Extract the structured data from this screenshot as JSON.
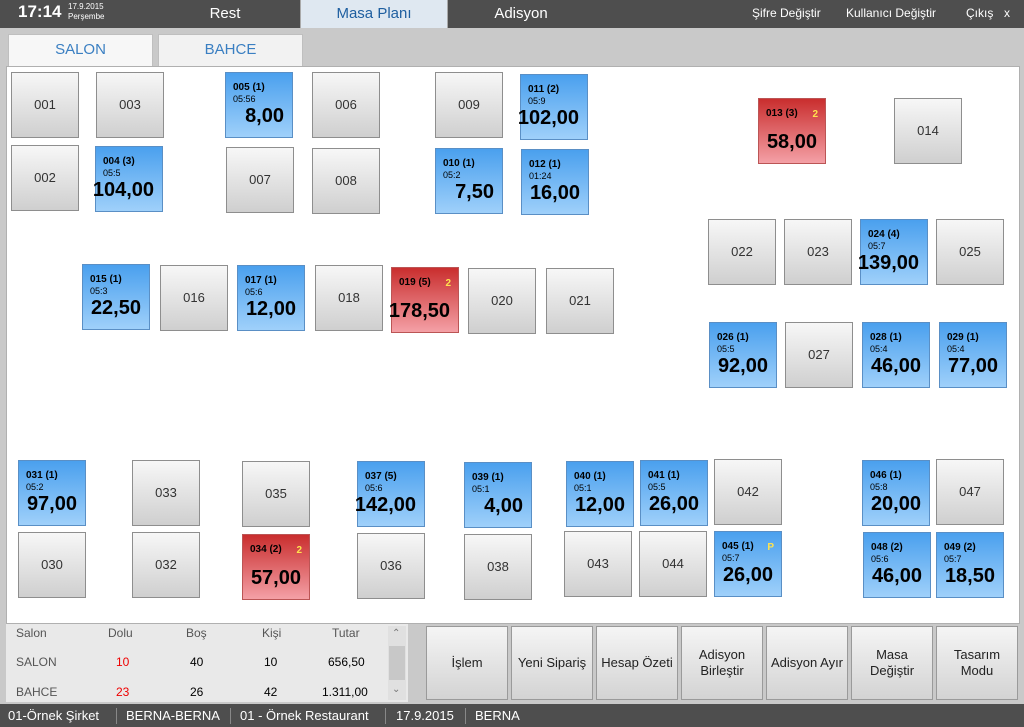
{
  "header": {
    "time": "17:14",
    "date": "17.9.2015",
    "day": "Perşembe",
    "tabs": [
      "Rest",
      "Masa Planı",
      "Adisyon"
    ],
    "links": [
      "Şifre Değiştir",
      "Kullanıcı Değiştir",
      "Çıkış",
      "x"
    ]
  },
  "halls": [
    "SALON",
    "BAHCE"
  ],
  "tables": [
    {
      "id": "001",
      "state": "empty"
    },
    {
      "id": "002",
      "state": "empty"
    },
    {
      "id": "003",
      "state": "empty"
    },
    {
      "id": "004 (3)",
      "time": "05:5",
      "amount": "104,00",
      "state": "busy"
    },
    {
      "id": "005 (1)",
      "time": "05:56",
      "amount": "8,00",
      "state": "busy"
    },
    {
      "id": "006",
      "state": "empty"
    },
    {
      "id": "007",
      "state": "empty"
    },
    {
      "id": "008",
      "state": "empty"
    },
    {
      "id": "009",
      "state": "empty"
    },
    {
      "id": "010 (1)",
      "time": "05:2",
      "amount": "7,50",
      "state": "busy"
    },
    {
      "id": "011 (2)",
      "time": "05:9",
      "amount": "102,00",
      "state": "busy"
    },
    {
      "id": "012 (1)",
      "time": "01:24",
      "amount": "16,00",
      "state": "busy"
    },
    {
      "id": "013 (3)",
      "time": "",
      "amount": "58,00",
      "state": "alert",
      "badge": "2"
    },
    {
      "id": "014",
      "state": "empty"
    },
    {
      "id": "015 (1)",
      "time": "05:3",
      "amount": "22,50",
      "state": "busy"
    },
    {
      "id": "016",
      "state": "empty"
    },
    {
      "id": "017 (1)",
      "time": "05:6",
      "amount": "12,00",
      "state": "busy"
    },
    {
      "id": "018",
      "state": "empty"
    },
    {
      "id": "019 (5)",
      "time": "",
      "amount": "178,50",
      "state": "alert",
      "badge": "2"
    },
    {
      "id": "020",
      "state": "empty"
    },
    {
      "id": "021",
      "state": "empty"
    },
    {
      "id": "022",
      "state": "empty"
    },
    {
      "id": "023",
      "state": "empty"
    },
    {
      "id": "024 (4)",
      "time": "05:7",
      "amount": "139,00",
      "state": "busy"
    },
    {
      "id": "025",
      "state": "empty"
    },
    {
      "id": "026 (1)",
      "time": "05:5",
      "amount": "92,00",
      "state": "busy"
    },
    {
      "id": "027",
      "state": "empty"
    },
    {
      "id": "028 (1)",
      "time": "05:4",
      "amount": "46,00",
      "state": "busy"
    },
    {
      "id": "029 (1)",
      "time": "05:4",
      "amount": "77,00",
      "state": "busy"
    },
    {
      "id": "030",
      "state": "empty"
    },
    {
      "id": "031 (1)",
      "time": "05:2",
      "amount": "97,00",
      "state": "busy"
    },
    {
      "id": "032",
      "state": "empty"
    },
    {
      "id": "033",
      "state": "empty"
    },
    {
      "id": "034 (2)",
      "time": "",
      "amount": "57,00",
      "state": "alert",
      "badge": "2"
    },
    {
      "id": "035",
      "state": "empty"
    },
    {
      "id": "036",
      "state": "empty"
    },
    {
      "id": "037 (5)",
      "time": "05:6",
      "amount": "142,00",
      "state": "busy"
    },
    {
      "id": "038",
      "state": "empty"
    },
    {
      "id": "039 (1)",
      "time": "05:1",
      "amount": "4,00",
      "state": "busy"
    },
    {
      "id": "040 (1)",
      "time": "05:1",
      "amount": "12,00",
      "state": "busy"
    },
    {
      "id": "041 (1)",
      "time": "05:5",
      "amount": "26,00",
      "state": "busy"
    },
    {
      "id": "042",
      "state": "empty"
    },
    {
      "id": "043",
      "state": "empty"
    },
    {
      "id": "044",
      "state": "empty"
    },
    {
      "id": "045 (1)",
      "time": "05:7",
      "amount": "26,00",
      "state": "busy",
      "badge": "P"
    },
    {
      "id": "046 (1)",
      "time": "05:8",
      "amount": "20,00",
      "state": "busy"
    },
    {
      "id": "047",
      "state": "empty"
    },
    {
      "id": "048 (2)",
      "time": "05:6",
      "amount": "46,00",
      "state": "busy"
    },
    {
      "id": "049 (2)",
      "time": "05:7",
      "amount": "18,50",
      "state": "busy"
    }
  ],
  "summary": {
    "headers": [
      "Salon",
      "Dolu",
      "Boş",
      "Kişi",
      "Tutar"
    ],
    "rows": [
      [
        "SALON",
        "10",
        "40",
        "10",
        "656,50"
      ],
      [
        "BAHCE",
        "23",
        "26",
        "42",
        "1.311,00"
      ]
    ]
  },
  "actions": [
    "İşlem",
    "Yeni Sipariş",
    "Hesap Özeti",
    "Adisyon\nBirleştir",
    "Adisyon Ayır",
    "Masa\nDeğiştir",
    "Tasarım\nModu"
  ],
  "status": [
    "01-Örnek Şirket",
    "BERNA-BERNA",
    "01 - Örnek Restaurant",
    "17.9.2015",
    "BERNA"
  ]
}
